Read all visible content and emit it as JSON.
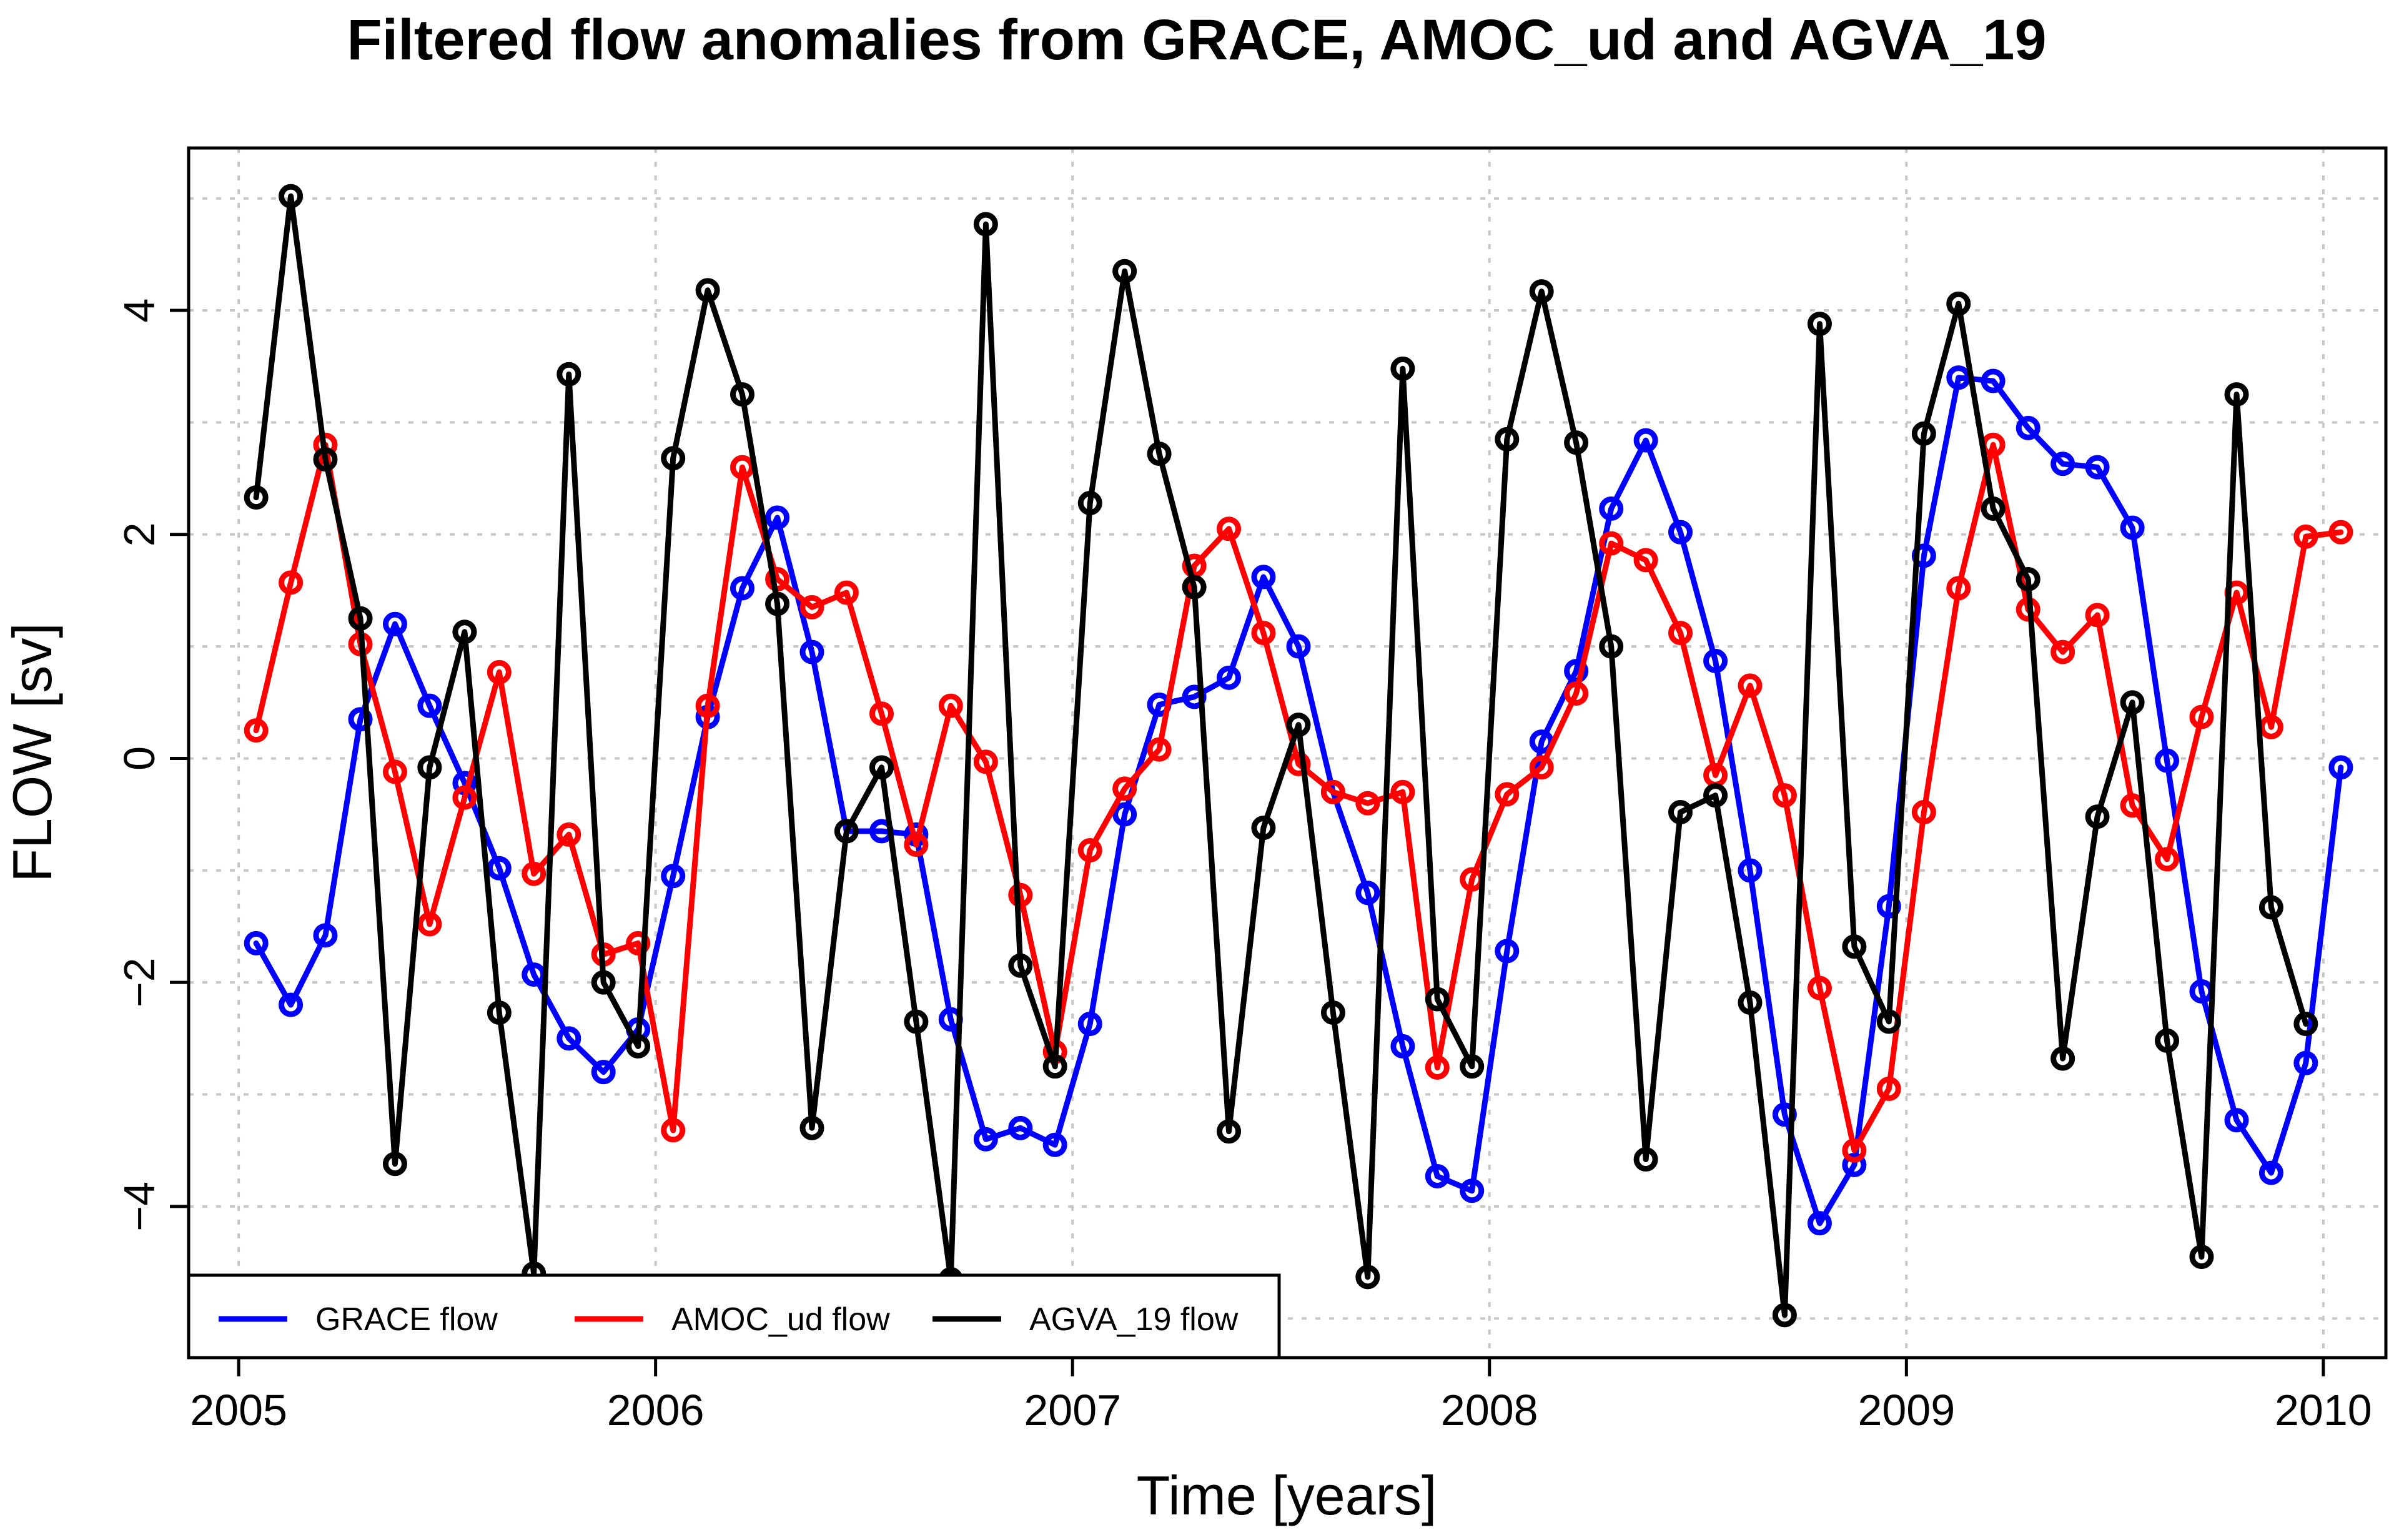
{
  "chart_data": {
    "type": "line",
    "title": "Filtered flow anomalies from GRACE, AMOC_ud and AGVA_19",
    "xlabel": "Time [years]",
    "ylabel": "FLOW [sv]",
    "xlim": [
      2004.88,
      2010.15
    ],
    "ylim": [
      -5.35,
      5.45
    ],
    "xticks": [
      2005,
      2006,
      2007,
      2008,
      2009,
      2010
    ],
    "xtick_labels": [
      "2005",
      "2006",
      "2007",
      "2008",
      "2009",
      "2010"
    ],
    "yticks": [
      -4,
      -2,
      0,
      2,
      4
    ],
    "ytick_labels": [
      "−4",
      "−2",
      "0",
      "2",
      "4"
    ],
    "grid": true,
    "legend_position": "bottom-left",
    "x": [
      2005.042,
      2005.125,
      2005.208,
      2005.292,
      2005.375,
      2005.458,
      2005.542,
      2005.625,
      2005.708,
      2005.792,
      2005.875,
      2005.958,
      2006.042,
      2006.125,
      2006.208,
      2006.292,
      2006.375,
      2006.458,
      2006.542,
      2006.625,
      2006.708,
      2006.792,
      2006.875,
      2006.958,
      2007.042,
      2007.125,
      2007.208,
      2007.292,
      2007.375,
      2007.458,
      2007.542,
      2007.625,
      2007.708,
      2007.792,
      2007.875,
      2007.958,
      2008.042,
      2008.125,
      2008.208,
      2008.292,
      2008.375,
      2008.458,
      2008.542,
      2008.625,
      2008.708,
      2008.792,
      2008.875,
      2008.958,
      2009.042,
      2009.125,
      2009.208,
      2009.292,
      2009.375,
      2009.458,
      2009.542,
      2009.625,
      2009.708,
      2009.792,
      2009.875,
      2009.958,
      2010.042
    ],
    "series": [
      {
        "name": "GRACE flow",
        "color": "#0000ff",
        "x": [
          2005.042,
          2005.125,
          2005.208,
          2005.292,
          2005.375,
          2005.458,
          2005.542,
          2005.625,
          2005.708,
          2005.792,
          2005.875,
          2005.958,
          2006.042,
          2006.125,
          2006.208,
          2006.292,
          2006.375,
          2006.458,
          2006.542,
          2006.625,
          2006.708,
          2006.792,
          2006.875,
          2006.958,
          2007.042,
          2007.125,
          2007.208,
          2007.292,
          2007.375,
          2007.458,
          2007.542,
          2007.625,
          2007.708,
          2007.792,
          2007.875,
          2007.958,
          2008.042,
          2008.125,
          2008.208,
          2008.292,
          2008.375,
          2008.458,
          2008.542,
          2008.625,
          2008.708,
          2008.792,
          2008.875,
          2008.958,
          2009.042,
          2009.125,
          2009.208,
          2009.292,
          2009.375,
          2009.458,
          2009.542,
          2009.625,
          2009.708,
          2009.792,
          2009.875,
          2009.958,
          2010.042
        ],
        "values": [
          -1.65,
          -2.2,
          -1.58,
          0.35,
          1.2,
          0.47,
          -0.22,
          -0.98,
          -1.93,
          -2.5,
          -2.8,
          -2.42,
          -1.05,
          0.37,
          1.52,
          2.15,
          0.95,
          -0.65,
          -0.65,
          -0.68,
          -2.33,
          -3.4,
          -3.3,
          -3.45,
          -2.37,
          -0.5,
          0.48,
          0.55,
          0.72,
          1.62,
          1.0,
          -0.3,
          -1.2,
          -2.57,
          -3.73,
          -3.86,
          -1.72,
          0.15,
          0.78,
          2.23,
          2.84,
          2.02,
          0.87,
          -1.0,
          -3.18,
          -4.15,
          -3.63,
          -1.32,
          1.81,
          3.4,
          3.37,
          2.95,
          2.63,
          2.6,
          2.06,
          -0.02,
          -2.08,
          -3.23,
          -3.7,
          -2.72,
          -0.08
        ]
      },
      {
        "name": "AMOC_ud flow",
        "color": "#ff0000",
        "x": [
          2005.042,
          2005.125,
          2005.208,
          2005.292,
          2005.375,
          2005.458,
          2005.542,
          2005.625,
          2005.708,
          2005.792,
          2005.875,
          2005.958,
          2006.042,
          2006.125,
          2006.208,
          2006.292,
          2006.375,
          2006.458,
          2006.542,
          2006.625,
          2006.708,
          2006.792,
          2006.875,
          2006.958,
          2007.042,
          2007.125,
          2007.208,
          2007.292,
          2007.375,
          2007.458,
          2007.542,
          2007.625,
          2007.708,
          2007.792,
          2007.875,
          2007.958,
          2008.042,
          2008.125,
          2008.208,
          2008.292,
          2008.375,
          2008.458,
          2008.542,
          2008.625,
          2008.708,
          2008.792,
          2008.875,
          2008.958,
          2009.042,
          2009.125,
          2009.208,
          2009.292,
          2009.375,
          2009.458,
          2009.542,
          2009.625,
          2009.708,
          2009.792,
          2009.875,
          2009.958,
          2010.042
        ],
        "values": [
          0.25,
          1.57,
          2.8,
          1.02,
          -0.12,
          -1.48,
          -0.35,
          0.77,
          -1.03,
          -0.68,
          -1.75,
          -1.65,
          -3.32,
          0.47,
          2.6,
          1.6,
          1.35,
          1.48,
          0.4,
          -0.77,
          0.47,
          -0.03,
          -1.22,
          -2.62,
          -0.82,
          -0.27,
          0.08,
          1.72,
          2.05,
          1.12,
          -0.05,
          -0.3,
          -0.4,
          -0.3,
          -2.76,
          -1.08,
          -0.32,
          -0.08,
          0.58,
          1.92,
          1.77,
          1.12,
          -0.15,
          0.65,
          -0.33,
          -2.05,
          -3.5,
          -2.95,
          -0.48,
          1.52,
          2.8,
          1.33,
          0.95,
          1.28,
          -0.42,
          -0.9,
          0.37,
          1.48,
          0.28,
          1.98,
          2.02
        ]
      },
      {
        "name": "AGVA_19 flow",
        "color": "#000000",
        "x": [
          2005.042,
          2005.125,
          2005.208,
          2005.292,
          2005.375,
          2005.458,
          2005.542,
          2005.625,
          2005.708,
          2005.792,
          2005.875,
          2005.958,
          2006.042,
          2006.125,
          2006.208,
          2006.292,
          2006.375,
          2006.458,
          2006.542,
          2006.625,
          2006.708,
          2006.792,
          2006.875,
          2006.958,
          2007.042,
          2007.125,
          2007.208,
          2007.292,
          2007.375,
          2007.458,
          2007.542,
          2007.625,
          2007.708,
          2007.792,
          2007.875,
          2007.958,
          2008.042,
          2008.125,
          2008.208,
          2008.292,
          2008.375,
          2008.458,
          2008.542,
          2008.625,
          2008.708,
          2008.792,
          2008.875,
          2008.958,
          2009.042,
          2009.125,
          2009.208,
          2009.292,
          2009.375,
          2009.458,
          2009.542,
          2009.625,
          2009.708,
          2009.792,
          2009.875,
          2009.958
        ],
        "values": [
          2.33,
          5.02,
          2.67,
          1.25,
          -3.62,
          -0.08,
          1.13,
          -2.27,
          -4.6,
          3.43,
          -2.0,
          -2.57,
          2.68,
          4.18,
          3.25,
          1.38,
          -3.3,
          -0.65,
          -0.08,
          -2.35,
          -4.65,
          4.77,
          -1.85,
          -2.75,
          2.28,
          4.35,
          2.72,
          1.53,
          -3.33,
          -0.62,
          0.3,
          -2.27,
          -4.63,
          3.48,
          -2.15,
          -2.75,
          2.85,
          4.17,
          2.82,
          1.0,
          -3.58,
          -0.48,
          -0.33,
          -2.18,
          -4.97,
          3.88,
          -1.68,
          -2.35,
          2.9,
          4.06,
          2.23,
          1.6,
          -2.68,
          -0.52,
          0.5,
          -2.52,
          -4.45,
          3.25,
          -1.33,
          -2.37
        ]
      }
    ]
  }
}
